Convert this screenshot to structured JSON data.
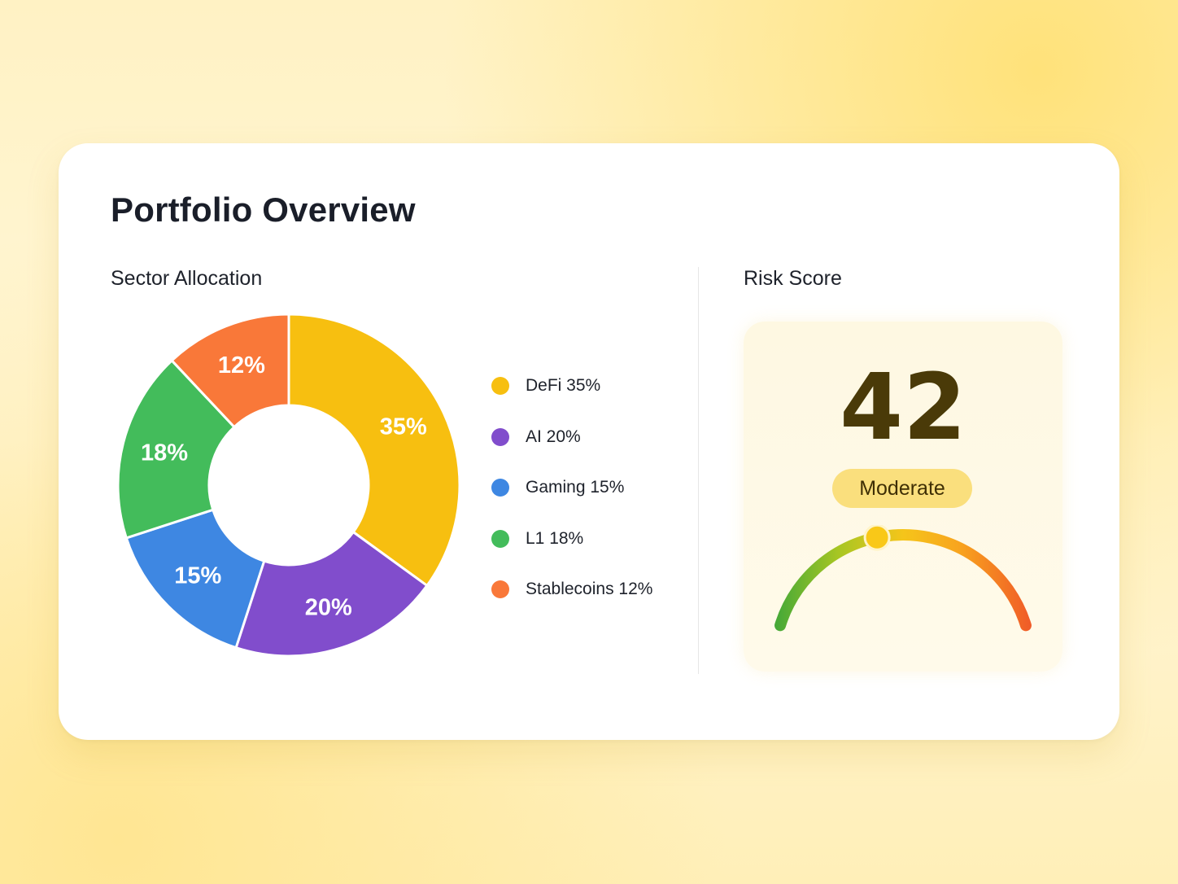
{
  "page": {
    "title": "Portfolio Overview"
  },
  "sector_allocation": {
    "title": "Sector Allocation"
  },
  "risk": {
    "title": "Risk Score",
    "score": "42",
    "level_label": "Moderate",
    "score_value": 42,
    "scale_min": 0,
    "scale_max": 100,
    "gauge_colors": [
      "#43A838",
      "#A8C623",
      "#F5C51A",
      "#F8A41E",
      "#F05A28"
    ],
    "needle_color": "#F9C818"
  },
  "chart_data": {
    "type": "pie",
    "title": "Sector Allocation",
    "donut": true,
    "legend_position": "right",
    "slices": [
      {
        "name": "DeFi",
        "value": 35,
        "label": "35%",
        "legend": "DeFi 35%",
        "color": "#F7BF10"
      },
      {
        "name": "AI",
        "value": 20,
        "label": "20%",
        "legend": "AI 20%",
        "color": "#814DCC"
      },
      {
        "name": "Gaming",
        "value": 15,
        "label": "15%",
        "legend": "Gaming 15%",
        "color": "#3E87E2"
      },
      {
        "name": "L1",
        "value": 18,
        "label": "18%",
        "legend": "L1 18%",
        "color": "#43BC5B"
      },
      {
        "name": "Stablecoins",
        "value": 12,
        "label": "12%",
        "legend": "Stablecoins 12%",
        "color": "#F97839"
      }
    ]
  }
}
